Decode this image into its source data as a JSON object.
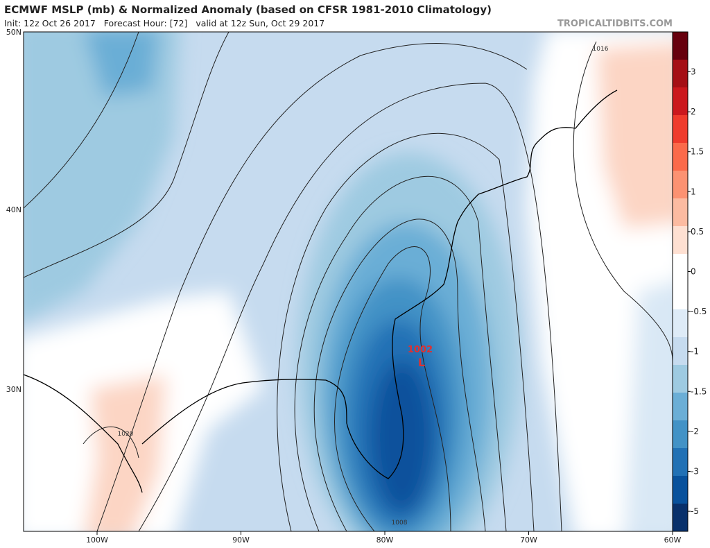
{
  "header": {
    "title": "ECMWF MSLP (mb) & Normalized Anomaly (based on CFSR 1981-2010 Climatology)",
    "subtitle": "Init: 12z Oct 26 2017   Forecast Hour: [72]   valid at 12z Sun, Oct 29 2017",
    "site": "TROPICALTIDBITS.COM"
  },
  "map": {
    "lat_labels": [
      "50N",
      "40N",
      "30N"
    ],
    "lon_labels": [
      "100W",
      "90W",
      "80W",
      "70W",
      "60W"
    ],
    "low": {
      "pressure": "1002",
      "symbol": "L"
    },
    "isobar_labels": [
      "1016",
      "1020",
      "1008"
    ]
  },
  "colorbar": {
    "labels": [
      "3",
      "2",
      "1.5",
      "1",
      "0.5",
      "0",
      "-0.5",
      "-1",
      "-1.5",
      "-2",
      "-3",
      "-5"
    ],
    "colors": [
      "#67000d",
      "#a50f15",
      "#cb181d",
      "#ef3b2c",
      "#fb6a4a",
      "#fc9272",
      "#fcbba1",
      "#fee0d2",
      "#ffffff",
      "#ffffff",
      "#deebf7",
      "#c6dbef",
      "#9ecae1",
      "#6baed6",
      "#4292c6",
      "#2171b5",
      "#08519c",
      "#08306b"
    ]
  }
}
